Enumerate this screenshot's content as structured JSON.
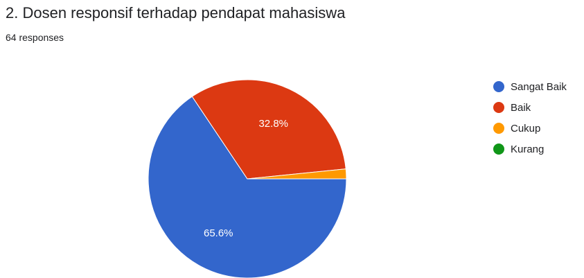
{
  "header": {
    "title": "2. Dosen responsif terhadap pendapat mahasiswa",
    "responses": "64 responses"
  },
  "chart_data": {
    "type": "pie",
    "categories": [
      "Sangat Baik",
      "Baik",
      "Cukup",
      "Kurang"
    ],
    "values": [
      65.6,
      32.8,
      1.6,
      0
    ],
    "colors": [
      "#3366cc",
      "#dc3912",
      "#ff9900",
      "#109618"
    ],
    "data_labels": [
      "65.6%",
      "32.8%",
      "",
      ""
    ],
    "legend_position": "right"
  }
}
